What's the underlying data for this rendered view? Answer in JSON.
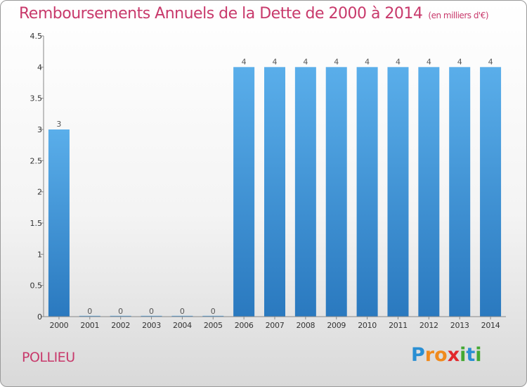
{
  "header": {
    "title": "Remboursements Annuels de la Dette de 2000 à 2014",
    "unit": "(en milliers d'€)"
  },
  "footer": {
    "city": "POLLIEU",
    "logo_letters": [
      "P",
      "r",
      "o",
      "x",
      "i",
      "t",
      "i"
    ],
    "logo_colors": [
      "#2a8fd3",
      "#f08a1d",
      "#f08a1d",
      "#e2282c",
      "#43a832",
      "#2a8fd3",
      "#43a832"
    ]
  },
  "colors": {
    "bar": "#4a9de0",
    "bar_dark": "#2f7fc6",
    "title": "#c8396b",
    "axis": "#666666"
  },
  "chart_data": {
    "type": "bar",
    "categories": [
      "2000",
      "2001",
      "2002",
      "2003",
      "2004",
      "2005",
      "2006",
      "2007",
      "2008",
      "2009",
      "2010",
      "2011",
      "2012",
      "2013",
      "2014"
    ],
    "values": [
      3,
      0,
      0,
      0,
      0,
      0,
      4,
      4,
      4,
      4,
      4,
      4,
      4,
      4,
      4
    ],
    "value_labels": [
      "3",
      "0",
      "0",
      "0",
      "0",
      "0",
      "4",
      "4",
      "4",
      "4",
      "4",
      "4",
      "4",
      "4",
      "4"
    ],
    "yticks": [
      0,
      0.5,
      1,
      1.5,
      2,
      2.5,
      3,
      3.5,
      4,
      4.5
    ],
    "ytick_labels": [
      "0",
      "0.5",
      "1",
      "1.5",
      "2",
      "2.5",
      "3",
      "3.5",
      "4",
      "4.5"
    ],
    "ylim": [
      0,
      4.5
    ],
    "grid": false,
    "legend": "none"
  }
}
